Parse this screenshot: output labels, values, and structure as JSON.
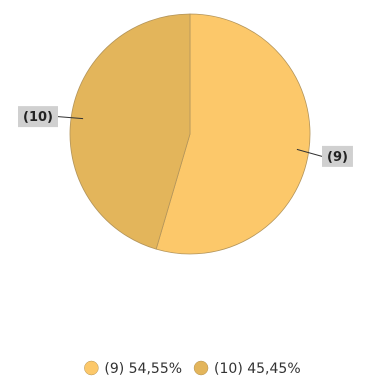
{
  "chart_data": {
    "type": "pie",
    "start_angle_deg": 0,
    "direction": "clockwise",
    "slices": [
      {
        "label": "(9)",
        "value": 54.55,
        "value_text": "54,55%",
        "color": "#fcc86a"
      },
      {
        "label": "(10)",
        "value": 45.45,
        "value_text": "45,45%",
        "color": "#e3b55b"
      }
    ],
    "legend_position": "bottom"
  },
  "colors": {
    "slice_stroke": "#b3955c",
    "callout_bg": "#d0d0d0",
    "leader_line": "#333333"
  }
}
